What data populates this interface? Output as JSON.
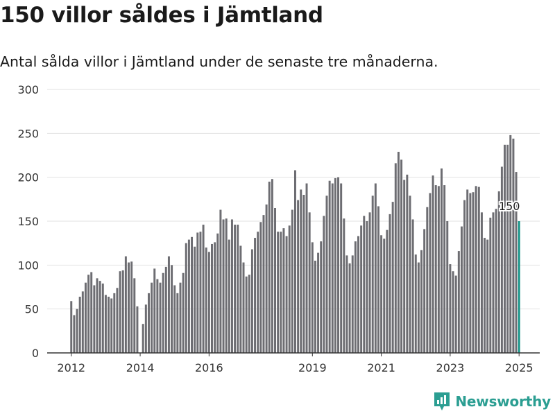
{
  "header": {
    "title": "150 villor såldes i Jämtland",
    "subtitle": "Antal sålda villor i Jämtland under de senaste tre månaderna."
  },
  "brand": {
    "name": "Newsworthy",
    "color": "#2b9e92",
    "icon": "newsworthy-logo-icon"
  },
  "colors": {
    "bar": "#6d6d72",
    "highlight": "#1a9488",
    "grid": "#e2e2e2",
    "axis": "#333333"
  },
  "chart_data": {
    "type": "bar",
    "title": "150 villor såldes i Jämtland",
    "subtitle": "Antal sålda villor i Jämtland under de senaste tre månaderna.",
    "xlabel": "",
    "ylabel": "",
    "ylim": [
      0,
      300
    ],
    "yticks": [
      0,
      50,
      100,
      150,
      200,
      250,
      300
    ],
    "xticks": [
      "2012",
      "2014",
      "2016",
      "2019",
      "2021",
      "2023",
      "2025"
    ],
    "xlim": [
      2011.3,
      2025.6
    ],
    "grid": true,
    "x_start": 2012.0,
    "x_step": 0.0833333,
    "values": [
      59,
      43,
      50,
      64,
      70,
      80,
      89,
      92,
      77,
      85,
      82,
      79,
      66,
      64,
      62,
      68,
      74,
      93,
      94,
      110,
      103,
      104,
      85,
      53,
      0,
      33,
      55,
      68,
      80,
      96,
      84,
      80,
      91,
      98,
      110,
      100,
      77,
      68,
      80,
      91,
      125,
      129,
      132,
      121,
      137,
      138,
      146,
      120,
      115,
      124,
      126,
      136,
      163,
      152,
      153,
      129,
      152,
      146,
      146,
      122,
      103,
      87,
      89,
      118,
      131,
      138,
      149,
      157,
      169,
      195,
      198,
      165,
      138,
      138,
      142,
      133,
      145,
      163,
      208,
      174,
      186,
      180,
      193,
      160,
      126,
      105,
      114,
      127,
      156,
      179,
      196,
      193,
      199,
      200,
      193,
      153,
      111,
      102,
      111,
      127,
      133,
      145,
      156,
      150,
      160,
      179,
      193,
      167,
      134,
      130,
      140,
      158,
      172,
      216,
      229,
      220,
      197,
      203,
      179,
      152,
      112,
      103,
      117,
      141,
      166,
      182,
      202,
      191,
      190,
      210,
      191,
      150,
      101,
      93,
      88,
      116,
      144,
      174,
      186,
      182,
      183,
      190,
      189,
      160,
      131,
      129,
      154,
      160,
      164,
      184,
      212,
      237,
      237,
      248,
      244,
      206,
      150
    ],
    "highlight": {
      "index": 156,
      "value": 150,
      "label": "150"
    }
  }
}
